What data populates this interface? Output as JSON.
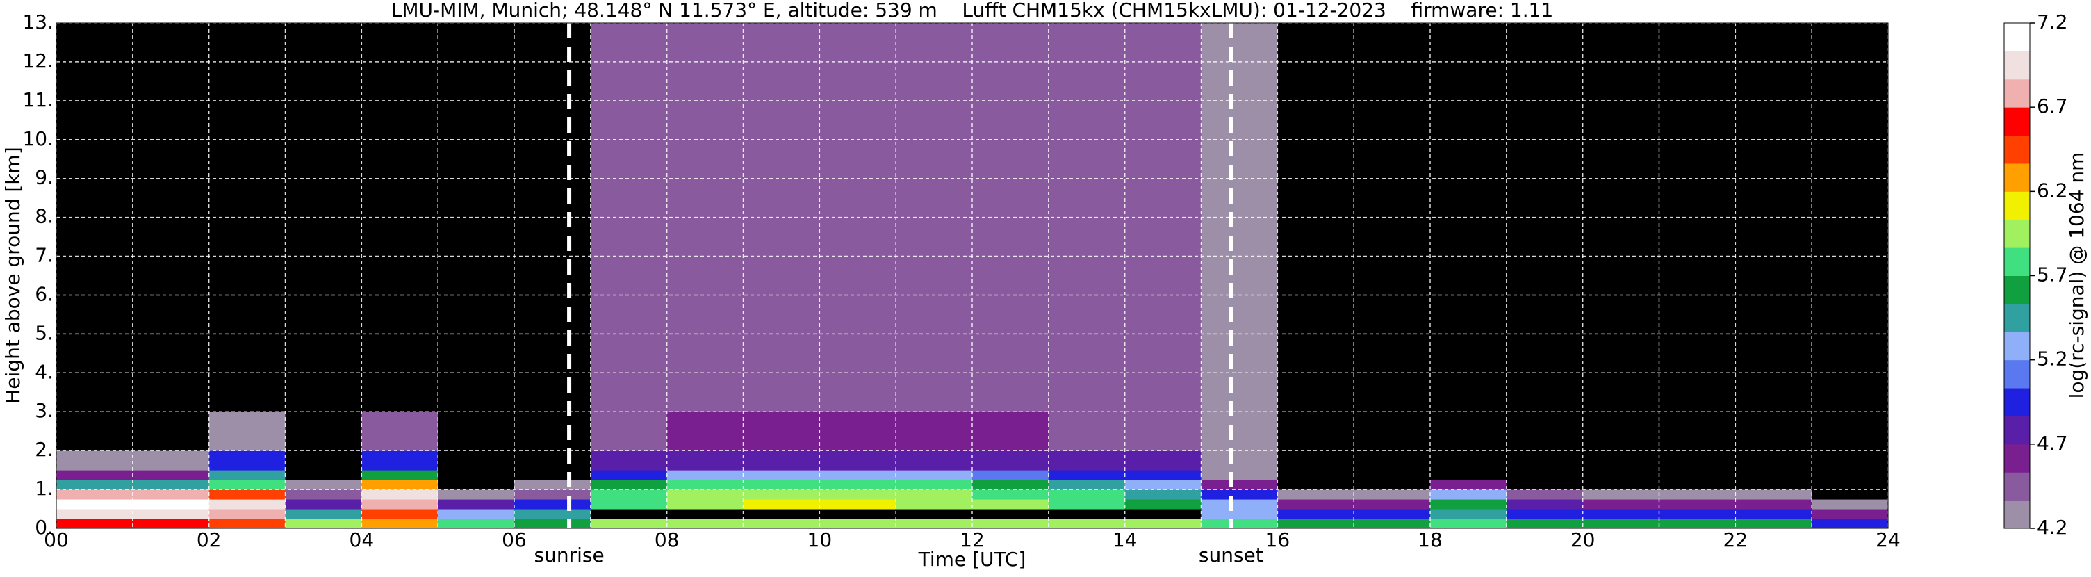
{
  "chart_data": {
    "type": "heatmap",
    "title": "LMU-MIM, Munich; 48.148° N 11.573° E, altitude: 539 m    Lufft CHM15kx (CHM15kxLMU): 01-12-2023    firmware: 1.11",
    "x_label": "Time [UTC]",
    "y_label": "Height above ground [km]",
    "colorbar_label": "log(rc-signal) @ 1064 nm",
    "xlim": [
      0,
      24
    ],
    "ylim": [
      0,
      13
    ],
    "xticks": [
      {
        "value": 0,
        "label": "00"
      },
      {
        "value": 2,
        "label": "02"
      },
      {
        "value": 4,
        "label": "04"
      },
      {
        "value": 6,
        "label": "06"
      },
      {
        "value": 8,
        "label": "08"
      },
      {
        "value": 10,
        "label": "10"
      },
      {
        "value": 12,
        "label": "12"
      },
      {
        "value": 14,
        "label": "14"
      },
      {
        "value": 16,
        "label": "16"
      },
      {
        "value": 18,
        "label": "18"
      },
      {
        "value": 20,
        "label": "20"
      },
      {
        "value": 22,
        "label": "22"
      },
      {
        "value": 24,
        "label": "24"
      }
    ],
    "x_minor_grid": [
      1,
      3,
      5,
      7,
      9,
      11,
      13,
      15,
      17,
      19,
      21,
      23
    ],
    "yticks": [
      {
        "value": 0,
        "label": "0."
      },
      {
        "value": 1,
        "label": "1."
      },
      {
        "value": 2,
        "label": "2."
      },
      {
        "value": 3,
        "label": "3."
      },
      {
        "value": 4,
        "label": "4."
      },
      {
        "value": 5,
        "label": "5."
      },
      {
        "value": 6,
        "label": "6."
      },
      {
        "value": 7,
        "label": "7."
      },
      {
        "value": 8,
        "label": "8."
      },
      {
        "value": 9,
        "label": "9."
      },
      {
        "value": 10,
        "label": "10."
      },
      {
        "value": 11,
        "label": "11."
      },
      {
        "value": 12,
        "label": "12."
      },
      {
        "value": 13,
        "label": "13."
      }
    ],
    "grid": true,
    "zlim": [
      4.2,
      7.2
    ],
    "zticks": [
      4.2,
      4.7,
      5.2,
      5.7,
      6.2,
      6.7,
      7.2
    ],
    "under_color": "#000000",
    "colors": [
      "#9e8fa8",
      "#8a5a9e",
      "#7a1f8f",
      "#5a1fa8",
      "#2020e0",
      "#5a78f0",
      "#8fb0f8",
      "#30a0a0",
      "#10a040",
      "#40e080",
      "#a0f060",
      "#f0f000",
      "#ffa000",
      "#ff4000",
      "#ff0000",
      "#f0b0b0",
      "#f0e0e0",
      "#ffffff"
    ],
    "annotations": [
      {
        "x": 6.72,
        "label": "sunrise"
      },
      {
        "x": 15.39,
        "label": "sunset"
      }
    ],
    "x_bins": [
      0,
      1,
      2,
      3,
      4,
      5,
      6,
      7,
      8,
      9,
      10,
      11,
      12,
      13,
      14,
      15,
      16,
      17,
      18,
      19,
      20,
      21,
      22,
      23,
      24
    ],
    "y_bins": [
      0,
      0.25,
      0.5,
      0.75,
      1,
      1.25,
      1.5,
      2,
      3,
      4,
      5,
      6,
      7,
      8,
      9,
      10,
      11,
      12,
      13
    ],
    "z": [
      [
        6.6,
        6.6,
        6.5,
        6.0,
        6.2,
        5.8,
        5.6,
        6.0,
        6.0,
        6.0,
        6.0,
        6.0,
        6.0,
        6.0,
        6.0,
        5.8,
        5.6,
        5.6,
        5.8,
        5.6,
        5.6,
        5.6,
        5.6,
        5.0
      ],
      [
        7.0,
        7.0,
        6.8,
        5.4,
        6.4,
        5.2,
        5.4,
        4.1,
        4.1,
        4.1,
        4.1,
        4.1,
        4.1,
        4.1,
        4.1,
        5.2,
        5.0,
        5.0,
        5.4,
        5.0,
        5.0,
        5.0,
        5.0,
        4.6
      ],
      [
        7.1,
        7.1,
        6.9,
        4.8,
        6.8,
        4.7,
        5.0,
        5.8,
        6.0,
        6.1,
        6.1,
        6.0,
        5.9,
        5.8,
        5.6,
        5.3,
        4.6,
        4.6,
        5.6,
        4.8,
        4.6,
        4.6,
        4.6,
        4.3
      ],
      [
        6.8,
        6.8,
        6.5,
        4.5,
        7.0,
        4.3,
        4.4,
        5.8,
        5.9,
        6.0,
        6.0,
        5.9,
        5.8,
        5.7,
        5.5,
        5.0,
        4.3,
        4.3,
        5.3,
        4.5,
        4.3,
        4.3,
        4.3,
        4.1
      ],
      [
        5.4,
        5.4,
        5.8,
        4.3,
        6.2,
        4.1,
        4.2,
        5.6,
        5.7,
        5.8,
        5.8,
        5.7,
        5.6,
        5.5,
        5.3,
        4.6,
        4.1,
        4.1,
        4.6,
        4.1,
        4.1,
        4.1,
        4.1,
        4.1
      ],
      [
        4.6,
        4.6,
        5.4,
        4.1,
        5.6,
        4.1,
        4.1,
        5.0,
        5.2,
        5.3,
        5.3,
        5.2,
        5.1,
        5.0,
        4.9,
        4.3,
        4.1,
        4.1,
        4.1,
        4.1,
        4.1,
        4.1,
        4.1,
        4.1
      ],
      [
        4.3,
        4.3,
        5.0,
        4.1,
        5.0,
        4.1,
        4.1,
        4.7,
        4.8,
        4.8,
        4.8,
        4.8,
        4.8,
        4.7,
        4.7,
        4.3,
        4.1,
        4.1,
        4.1,
        4.1,
        4.1,
        4.1,
        4.1,
        4.1
      ],
      [
        4.1,
        4.1,
        4.3,
        4.1,
        4.4,
        4.1,
        4.1,
        4.5,
        4.6,
        4.6,
        4.6,
        4.6,
        4.6,
        4.5,
        4.5,
        4.2,
        4.1,
        4.1,
        4.1,
        4.1,
        4.1,
        4.1,
        4.1,
        4.1
      ],
      [
        4.1,
        4.1,
        4.1,
        4.1,
        4.1,
        4.1,
        4.1,
        4.5,
        4.5,
        4.5,
        4.5,
        4.5,
        4.5,
        4.5,
        4.5,
        4.2,
        4.1,
        4.1,
        4.1,
        4.1,
        4.1,
        4.1,
        4.1,
        4.1
      ],
      [
        4.1,
        4.1,
        4.1,
        4.1,
        4.1,
        4.1,
        4.1,
        4.5,
        4.5,
        4.5,
        4.5,
        4.5,
        4.5,
        4.5,
        4.5,
        4.2,
        4.1,
        4.1,
        4.1,
        4.1,
        4.1,
        4.1,
        4.1,
        4.1
      ],
      [
        4.1,
        4.1,
        4.1,
        4.1,
        4.1,
        4.1,
        4.1,
        4.5,
        4.5,
        4.5,
        4.5,
        4.5,
        4.5,
        4.5,
        4.5,
        4.2,
        4.1,
        4.1,
        4.1,
        4.1,
        4.1,
        4.1,
        4.1,
        4.1
      ],
      [
        4.1,
        4.1,
        4.1,
        4.1,
        4.1,
        4.1,
        4.1,
        4.5,
        4.5,
        4.5,
        4.5,
        4.5,
        4.5,
        4.5,
        4.5,
        4.2,
        4.1,
        4.1,
        4.1,
        4.1,
        4.1,
        4.1,
        4.1,
        4.1
      ],
      [
        4.1,
        4.1,
        4.1,
        4.1,
        4.1,
        4.1,
        4.1,
        4.5,
        4.5,
        4.5,
        4.5,
        4.5,
        4.5,
        4.5,
        4.5,
        4.2,
        4.1,
        4.1,
        4.1,
        4.1,
        4.1,
        4.1,
        4.1,
        4.1
      ],
      [
        4.1,
        4.1,
        4.1,
        4.1,
        4.1,
        4.1,
        4.1,
        4.5,
        4.5,
        4.5,
        4.5,
        4.5,
        4.5,
        4.5,
        4.5,
        4.2,
        4.1,
        4.1,
        4.1,
        4.1,
        4.1,
        4.1,
        4.1,
        4.1
      ],
      [
        4.1,
        4.1,
        4.1,
        4.1,
        4.1,
        4.1,
        4.1,
        4.5,
        4.5,
        4.5,
        4.5,
        4.5,
        4.5,
        4.5,
        4.5,
        4.2,
        4.1,
        4.1,
        4.1,
        4.1,
        4.1,
        4.1,
        4.1,
        4.1
      ],
      [
        4.1,
        4.1,
        4.1,
        4.1,
        4.1,
        4.1,
        4.1,
        4.5,
        4.5,
        4.5,
        4.5,
        4.5,
        4.5,
        4.5,
        4.5,
        4.2,
        4.1,
        4.1,
        4.1,
        4.1,
        4.1,
        4.1,
        4.1,
        4.1
      ],
      [
        4.1,
        4.1,
        4.1,
        4.1,
        4.1,
        4.1,
        4.1,
        4.5,
        4.5,
        4.5,
        4.5,
        4.5,
        4.5,
        4.5,
        4.5,
        4.2,
        4.1,
        4.1,
        4.1,
        4.1,
        4.1,
        4.1,
        4.1,
        4.1
      ],
      [
        4.1,
        4.1,
        4.1,
        4.1,
        4.1,
        4.1,
        4.1,
        4.5,
        4.5,
        4.5,
        4.5,
        4.5,
        4.5,
        4.5,
        4.5,
        4.2,
        4.1,
        4.1,
        4.1,
        4.1,
        4.1,
        4.1,
        4.1,
        4.1
      ]
    ]
  }
}
